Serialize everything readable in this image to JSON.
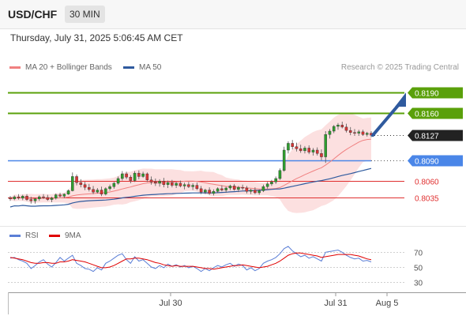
{
  "header": {
    "pair": "USD/CHF",
    "timeframe": "30 MIN"
  },
  "datetime": "Thursday, July 31, 2025 5:06:45 AM CET",
  "legend": {
    "bollinger": {
      "label": "MA 20 + Bollinger Bands",
      "color": "#f08080"
    },
    "ma50": {
      "label": "MA 50",
      "color": "#2f5a9e"
    }
  },
  "credit": "Research © 2025 Trading Central",
  "rsi_legend": {
    "rsi": {
      "label": "RSI",
      "color": "#5b7fd6"
    },
    "ma9": {
      "label": "9MA",
      "color": "#e00000"
    }
  },
  "chart_data": [
    {
      "type": "candlestick",
      "ylim": [
        0.8,
        0.821
      ],
      "x_labels": [
        "Jul 30",
        "Jul 31",
        "Aug 5"
      ],
      "levels": [
        {
          "value": "0.8190",
          "kind": "resistance",
          "color": "#5aa00a"
        },
        {
          "value": "0.8160",
          "kind": "resistance",
          "color": "#5aa00a"
        },
        {
          "value": "0.8127",
          "kind": "last",
          "color": "#333333"
        },
        {
          "value": "0.8090",
          "kind": "pivot",
          "color": "#4a86e8"
        },
        {
          "value": "0.8060",
          "kind": "support",
          "color": "#e03030"
        },
        {
          "value": "0.8035",
          "kind": "support",
          "color": "#e03030"
        }
      ],
      "candles": [
        [
          0.8035,
          0.8037,
          0.803,
          0.8033
        ],
        [
          0.8033,
          0.8038,
          0.8031,
          0.8036
        ],
        [
          0.8036,
          0.804,
          0.8032,
          0.8034
        ],
        [
          0.8034,
          0.8039,
          0.8031,
          0.8037
        ],
        [
          0.8037,
          0.804,
          0.803,
          0.8032
        ],
        [
          0.8032,
          0.8036,
          0.8026,
          0.803
        ],
        [
          0.803,
          0.8034,
          0.8026,
          0.8033
        ],
        [
          0.8033,
          0.8038,
          0.803,
          0.8036
        ],
        [
          0.8036,
          0.804,
          0.8033,
          0.8035
        ],
        [
          0.8035,
          0.8039,
          0.803,
          0.8032
        ],
        [
          0.8032,
          0.8036,
          0.8028,
          0.8034
        ],
        [
          0.8034,
          0.8041,
          0.8032,
          0.8039
        ],
        [
          0.8039,
          0.8042,
          0.8035,
          0.8037
        ],
        [
          0.8037,
          0.8041,
          0.8034,
          0.804
        ],
        [
          0.804,
          0.8047,
          0.8039,
          0.8045
        ],
        [
          0.8045,
          0.8072,
          0.8044,
          0.8066
        ],
        [
          0.8066,
          0.8069,
          0.8053,
          0.8057
        ],
        [
          0.8057,
          0.8062,
          0.805,
          0.8054
        ],
        [
          0.8054,
          0.8058,
          0.8046,
          0.805
        ],
        [
          0.805,
          0.8055,
          0.8044,
          0.8047
        ],
        [
          0.8047,
          0.8052,
          0.804,
          0.8043
        ],
        [
          0.8043,
          0.8049,
          0.8041,
          0.8046
        ],
        [
          0.8046,
          0.8051,
          0.8037,
          0.804
        ],
        [
          0.804,
          0.805,
          0.8038,
          0.8048
        ],
        [
          0.8048,
          0.8054,
          0.8045,
          0.8051
        ],
        [
          0.8051,
          0.8058,
          0.8048,
          0.8056
        ],
        [
          0.8056,
          0.8066,
          0.8054,
          0.8063
        ],
        [
          0.8063,
          0.8074,
          0.806,
          0.807
        ],
        [
          0.807,
          0.8073,
          0.8062,
          0.8065
        ],
        [
          0.8065,
          0.8068,
          0.8056,
          0.806
        ],
        [
          0.806,
          0.8074,
          0.8058,
          0.8071
        ],
        [
          0.8071,
          0.8075,
          0.8062,
          0.8066
        ],
        [
          0.8066,
          0.8073,
          0.8064,
          0.807
        ],
        [
          0.807,
          0.8072,
          0.8058,
          0.8061
        ],
        [
          0.8061,
          0.8066,
          0.8054,
          0.8058
        ],
        [
          0.8058,
          0.8063,
          0.8052,
          0.8056
        ],
        [
          0.8056,
          0.8062,
          0.8051,
          0.8059
        ],
        [
          0.8059,
          0.8064,
          0.805,
          0.8054
        ],
        [
          0.8054,
          0.806,
          0.8049,
          0.8057
        ],
        [
          0.8057,
          0.8061,
          0.805,
          0.8053
        ],
        [
          0.8053,
          0.8058,
          0.8049,
          0.8056
        ],
        [
          0.8056,
          0.806,
          0.805,
          0.8052
        ],
        [
          0.8052,
          0.8057,
          0.8047,
          0.8054
        ],
        [
          0.8054,
          0.8058,
          0.8049,
          0.8051
        ],
        [
          0.8051,
          0.8056,
          0.8046,
          0.8053
        ],
        [
          0.8053,
          0.8057,
          0.8046,
          0.8048
        ],
        [
          0.8048,
          0.8052,
          0.804,
          0.8043
        ],
        [
          0.8043,
          0.8048,
          0.804,
          0.8046
        ],
        [
          0.8046,
          0.805,
          0.8039,
          0.8041
        ],
        [
          0.8041,
          0.8047,
          0.8038,
          0.8044
        ],
        [
          0.8044,
          0.805,
          0.8042,
          0.8048
        ],
        [
          0.8048,
          0.8053,
          0.8044,
          0.8046
        ],
        [
          0.8046,
          0.8051,
          0.8042,
          0.8049
        ],
        [
          0.8049,
          0.8054,
          0.8046,
          0.8052
        ],
        [
          0.8052,
          0.8055,
          0.8045,
          0.8047
        ],
        [
          0.8047,
          0.8052,
          0.8043,
          0.805
        ],
        [
          0.805,
          0.8054,
          0.8046,
          0.8049
        ],
        [
          0.8049,
          0.8052,
          0.8041,
          0.8044
        ],
        [
          0.8044,
          0.8048,
          0.804,
          0.8046
        ],
        [
          0.8046,
          0.805,
          0.804,
          0.8042
        ],
        [
          0.8042,
          0.8047,
          0.8039,
          0.8045
        ],
        [
          0.8045,
          0.8054,
          0.8043,
          0.8051
        ],
        [
          0.8051,
          0.8058,
          0.8048,
          0.8055
        ],
        [
          0.8055,
          0.8061,
          0.8052,
          0.8058
        ],
        [
          0.8058,
          0.8066,
          0.8055,
          0.8063
        ],
        [
          0.8063,
          0.8078,
          0.8061,
          0.8075
        ],
        [
          0.8075,
          0.811,
          0.8073,
          0.8105
        ],
        [
          0.8105,
          0.8118,
          0.81,
          0.8115
        ],
        [
          0.8115,
          0.812,
          0.8106,
          0.811
        ],
        [
          0.811,
          0.8116,
          0.8103,
          0.8107
        ],
        [
          0.8107,
          0.8113,
          0.8101,
          0.8104
        ],
        [
          0.8104,
          0.8111,
          0.81,
          0.8108
        ],
        [
          0.8108,
          0.8112,
          0.8099,
          0.8102
        ],
        [
          0.8102,
          0.8108,
          0.8097,
          0.8105
        ],
        [
          0.8105,
          0.8109,
          0.8097,
          0.81
        ],
        [
          0.81,
          0.8106,
          0.809,
          0.8095
        ],
        [
          0.8095,
          0.8133,
          0.8086,
          0.8128
        ],
        [
          0.8128,
          0.8136,
          0.8122,
          0.8133
        ],
        [
          0.8133,
          0.8142,
          0.813,
          0.814
        ],
        [
          0.814,
          0.8145,
          0.8135,
          0.8142
        ],
        [
          0.8142,
          0.8147,
          0.8137,
          0.8139
        ],
        [
          0.8139,
          0.8144,
          0.8131,
          0.8134
        ],
        [
          0.8134,
          0.8139,
          0.8127,
          0.8131
        ],
        [
          0.8131,
          0.8136,
          0.8126,
          0.813
        ],
        [
          0.813,
          0.8135,
          0.8126,
          0.8132
        ],
        [
          0.8132,
          0.8135,
          0.8126,
          0.8128
        ],
        [
          0.8128,
          0.8132,
          0.8125,
          0.813
        ],
        [
          0.813,
          0.8133,
          0.8124,
          0.8127
        ]
      ]
    },
    {
      "type": "line",
      "title": "RSI",
      "ylim": [
        20,
        80
      ],
      "y_ticks": [
        "70",
        "50",
        "30"
      ],
      "series": [
        {
          "name": "RSI",
          "values": [
            62,
            63,
            60,
            58,
            55,
            48,
            52,
            57,
            60,
            54,
            50,
            56,
            63,
            58,
            62,
            66,
            55,
            52,
            48,
            47,
            44,
            49,
            46,
            55,
            58,
            62,
            66,
            68,
            60,
            55,
            64,
            58,
            60,
            55,
            50,
            48,
            52,
            49,
            54,
            51,
            53,
            50,
            52,
            49,
            51,
            48,
            44,
            48,
            45,
            49,
            52,
            50,
            53,
            55,
            51,
            54,
            52,
            46,
            49,
            45,
            48,
            55,
            58,
            60,
            63,
            68,
            75,
            78,
            72,
            68,
            64,
            66,
            62,
            64,
            61,
            58,
            70,
            71,
            72,
            73,
            70,
            66,
            63,
            61,
            62,
            58,
            59,
            57
          ]
        },
        {
          "name": "9MA",
          "values": [
            63,
            62,
            61,
            60,
            58,
            56,
            55,
            55,
            56,
            56,
            55,
            55,
            57,
            57,
            58,
            60,
            59,
            58,
            57,
            55,
            53,
            51,
            49,
            49,
            50,
            52,
            55,
            58,
            61,
            61,
            62,
            62,
            61,
            60,
            58,
            56,
            55,
            53,
            52,
            51,
            52,
            51,
            51,
            51,
            51,
            50,
            49,
            48,
            48,
            47,
            48,
            49,
            50,
            51,
            52,
            52,
            53,
            52,
            51,
            50,
            49,
            50,
            51,
            53,
            55,
            58,
            62,
            66,
            68,
            69,
            69,
            68,
            67,
            66,
            65,
            63,
            64,
            65,
            66,
            67,
            67,
            67,
            67,
            66,
            65,
            63,
            61,
            60
          ]
        }
      ]
    }
  ]
}
